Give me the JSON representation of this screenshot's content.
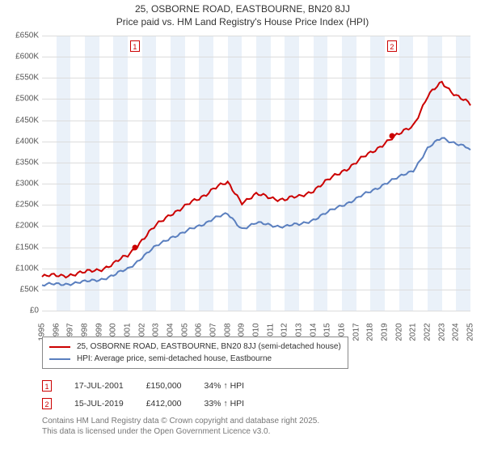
{
  "title_line1": "25, OSBORNE ROAD, EASTBOURNE, BN20 8JJ",
  "title_line2": "Price paid vs. HM Land Registry's House Price Index (HPI)",
  "chart": {
    "type": "line",
    "background_color": "#ffffff",
    "alt_band_color": "#eaf1f9",
    "grid_color": "#dcdcdc",
    "y": {
      "min": 0,
      "max": 650,
      "step": 50,
      "prefix": "£",
      "suffix": "K",
      "zero_label": "£0"
    },
    "x": {
      "years": [
        1995,
        1996,
        1997,
        1998,
        1999,
        2000,
        2001,
        2002,
        2003,
        2004,
        2005,
        2006,
        2007,
        2008,
        2009,
        2010,
        2011,
        2012,
        2013,
        2014,
        2015,
        2016,
        2017,
        2018,
        2019,
        2020,
        2021,
        2022,
        2023,
        2024,
        2025
      ]
    },
    "series": [
      {
        "name": "25, OSBORNE ROAD, EASTBOURNE, BN20 8JJ (semi-detached house)",
        "color": "#cc0000",
        "width": 2,
        "values": [
          80,
          82,
          86,
          89,
          98,
          110,
          130,
          168,
          200,
          230,
          245,
          265,
          290,
          300,
          258,
          273,
          268,
          263,
          268,
          286,
          306,
          330,
          350,
          372,
          398,
          415,
          440,
          505,
          540,
          510,
          485
        ]
      },
      {
        "name": "HPI: Average price, semi-detached house, Eastbourne",
        "color": "#5a7fbf",
        "width": 2,
        "values": [
          60,
          62,
          65,
          67,
          74,
          83,
          98,
          127,
          151,
          174,
          185,
          200,
          219,
          227,
          195,
          206,
          203,
          199,
          203,
          216,
          231,
          250,
          264,
          281,
          301,
          314,
          333,
          382,
          409,
          396,
          380
        ]
      }
    ],
    "sale_markers": [
      {
        "label": "1",
        "year": 2001.5,
        "value": 150
      },
      {
        "label": "2",
        "year": 2019.5,
        "value": 412
      }
    ]
  },
  "legend_title": "",
  "points": [
    {
      "label": "1",
      "date": "17-JUL-2001",
      "price": "£150,000",
      "delta": "34% ↑ HPI"
    },
    {
      "label": "2",
      "date": "15-JUL-2019",
      "price": "£412,000",
      "delta": "33% ↑ HPI"
    }
  ],
  "footer_line1": "Contains HM Land Registry data © Crown copyright and database right 2025.",
  "footer_line2": "This data is licensed under the Open Government Licence v3.0."
}
